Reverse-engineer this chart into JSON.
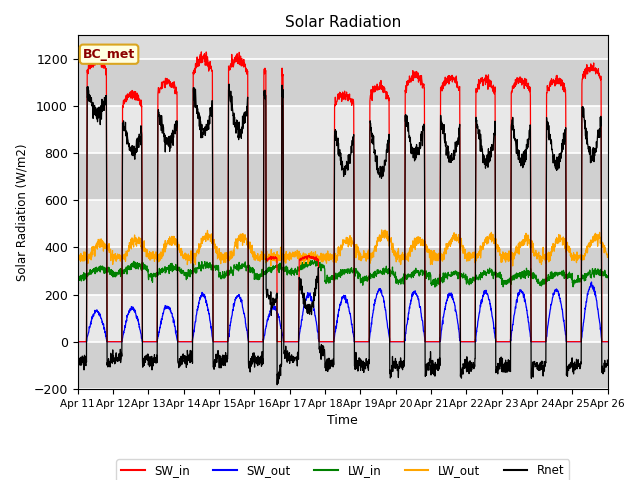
{
  "title": "Solar Radiation",
  "ylabel": "Solar Radiation (W/m2)",
  "xlabel": "Time",
  "ylim": [
    -200,
    1300
  ],
  "yticks": [
    -200,
    0,
    200,
    400,
    600,
    800,
    1000,
    1200
  ],
  "colors": {
    "SW_in": "red",
    "SW_out": "blue",
    "LW_in": "green",
    "LW_out": "orange",
    "Rnet": "black"
  },
  "start_day": 11,
  "end_day": 26,
  "station_label": "BC_met",
  "facecolor": "#dcdcdc",
  "sw_peaks": [
    1200,
    1050,
    1100,
    1200,
    1200,
    1185,
    360,
    1050,
    1080,
    1130,
    1120,
    1110,
    1110,
    1110,
    1160
  ],
  "lw_out_peaks": [
    420,
    430,
    430,
    450,
    440,
    360,
    350,
    430,
    460,
    430,
    440,
    440,
    430,
    430,
    440
  ],
  "lw_in_base": [
    290,
    305,
    295,
    305,
    300,
    295,
    315,
    280,
    280,
    275,
    270,
    275,
    270,
    270,
    275
  ],
  "sw_out_peaks": [
    130,
    140,
    150,
    200,
    195,
    145,
    200,
    190,
    220,
    210,
    200,
    210,
    215,
    220,
    240
  ]
}
